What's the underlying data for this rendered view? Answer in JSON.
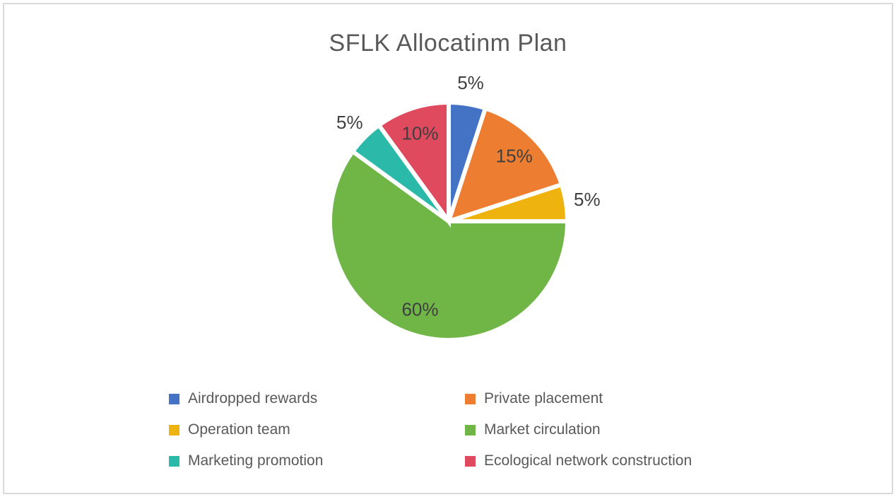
{
  "chart_data": {
    "type": "pie",
    "title": "SFLK Allocatinm Plan",
    "total": 100,
    "start_angle_deg": 0,
    "legend_position": "bottom",
    "legend_columns": 2,
    "series": [
      {
        "label": "Airdropped rewards",
        "value": 5,
        "label_text": "5%",
        "color": "#4472C4",
        "label_inside": false
      },
      {
        "label": "Private placement",
        "value": 15,
        "label_text": "15%",
        "color": "#ED7D31",
        "label_inside": true
      },
      {
        "label": "Operation team",
        "value": 5,
        "label_text": "5%",
        "color": "#EFB310",
        "label_inside": false
      },
      {
        "label": "Market circulation",
        "value": 60,
        "label_text": "60%",
        "color": "#70B647",
        "label_inside": true
      },
      {
        "label": "Marketing promotion",
        "value": 5,
        "label_text": "5%",
        "color": "#2BB9A9",
        "label_inside": false
      },
      {
        "label": "Ecological network construction",
        "value": 10,
        "label_text": "10%",
        "color": "#E04A5E",
        "label_inside": true
      }
    ],
    "text_colors": {
      "title": "#595959",
      "data_label": "#3F3F3F",
      "legend": "#595959"
    }
  }
}
